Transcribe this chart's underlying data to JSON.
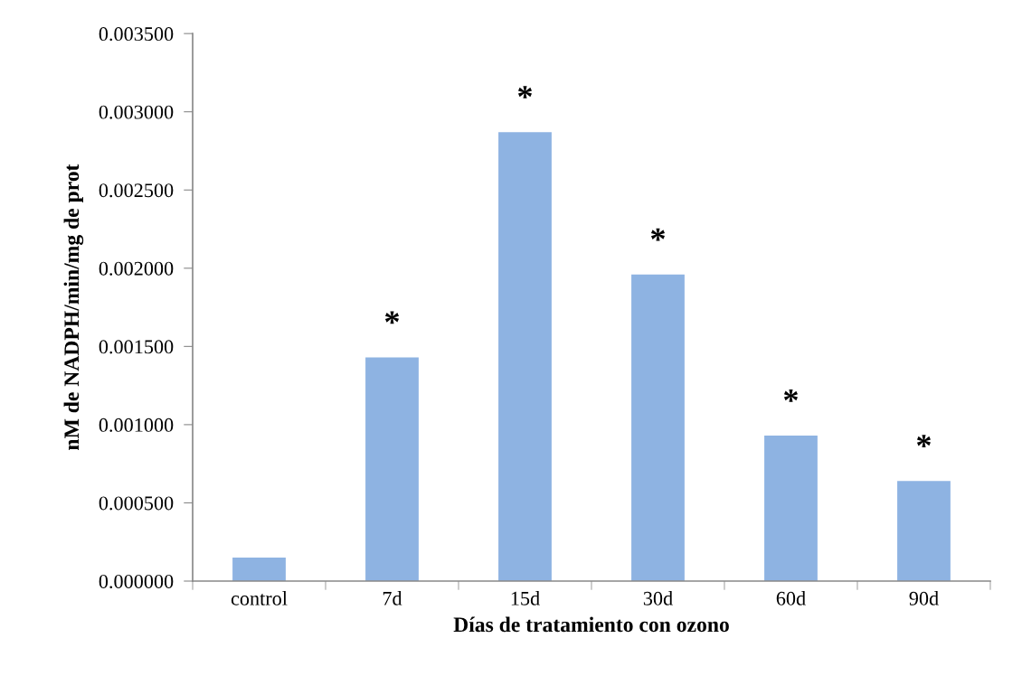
{
  "chart_data": {
    "type": "bar",
    "xlabel": "Días de tratamiento con ozono",
    "ylabel": "nM de NADPH/min/mg de prot",
    "categories": [
      "control",
      "7d",
      "15d",
      "30d",
      "60d",
      "90d"
    ],
    "values": [
      0.00015,
      0.00143,
      0.00287,
      0.00196,
      0.00093,
      0.00064
    ],
    "color": "#8eb3e2",
    "ylim": [
      0,
      0.0035
    ],
    "yticks": [
      {
        "value": 0,
        "label": "0.000000"
      },
      {
        "value": 0.0005,
        "label": "0.000500"
      },
      {
        "value": 0.001,
        "label": "0.001000"
      },
      {
        "value": 0.0015,
        "label": "0.001500"
      },
      {
        "value": 0.002,
        "label": "0.002000"
      },
      {
        "value": 0.0025,
        "label": "0.002500"
      },
      {
        "value": 0.003,
        "label": "0.003000"
      },
      {
        "value": 0.0035,
        "label": "0.003500"
      }
    ],
    "grid": false,
    "annotations": [
      {
        "text": "*",
        "x": "7d",
        "y": 0.00143
      },
      {
        "text": "*",
        "x": "15d",
        "y": 0.00287
      },
      {
        "text": "*",
        "x": "30d",
        "y": 0.00196
      },
      {
        "text": "*",
        "x": "60d",
        "y": 0.00093
      },
      {
        "text": "*",
        "x": "90d",
        "y": 0.00064
      }
    ]
  }
}
